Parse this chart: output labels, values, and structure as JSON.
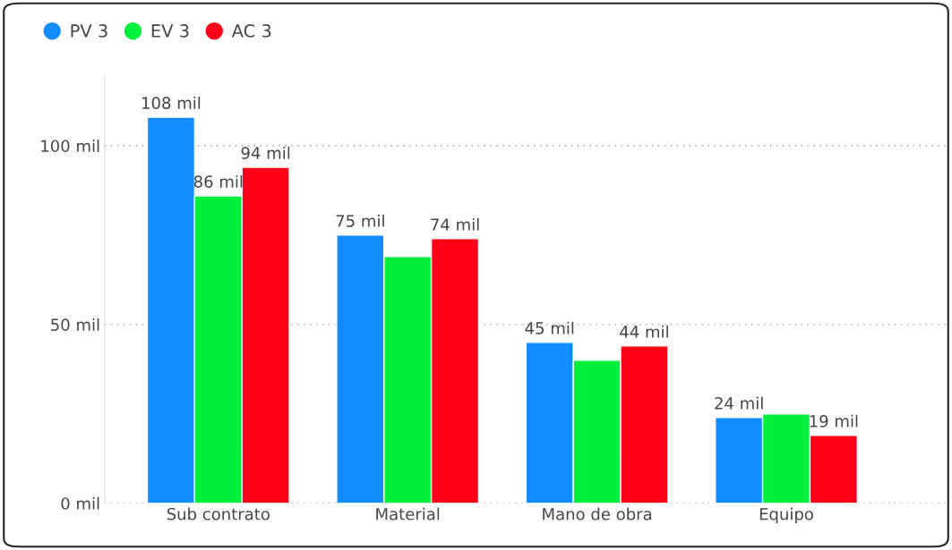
{
  "chart_data": {
    "type": "bar",
    "categories": [
      "Sub contrato",
      "Material",
      "Mano de obra",
      "Equipo"
    ],
    "series": [
      {
        "name": "PV 3",
        "color": "#118dff",
        "values": [
          108,
          75,
          45,
          24
        ],
        "value_labels": [
          "108 mil",
          "75 mil",
          "45 mil",
          "24 mil"
        ]
      },
      {
        "name": "EV 3",
        "color": "#00f03c",
        "values": [
          86,
          69,
          40,
          25
        ],
        "value_labels": [
          "86 mil",
          null,
          null,
          null
        ]
      },
      {
        "name": "AC 3",
        "color": "#ff0019",
        "values": [
          94,
          74,
          44,
          19
        ],
        "value_labels": [
          "94 mil",
          "74 mil",
          "44 mil",
          "19 mil"
        ]
      }
    ],
    "ylim": [
      0,
      120
    ],
    "yticks": [
      {
        "value": 0,
        "label": "0 mil"
      },
      {
        "value": 50,
        "label": "50 mil"
      },
      {
        "value": 100,
        "label": "100 mil"
      }
    ],
    "grid": "y",
    "legend": "top left"
  }
}
